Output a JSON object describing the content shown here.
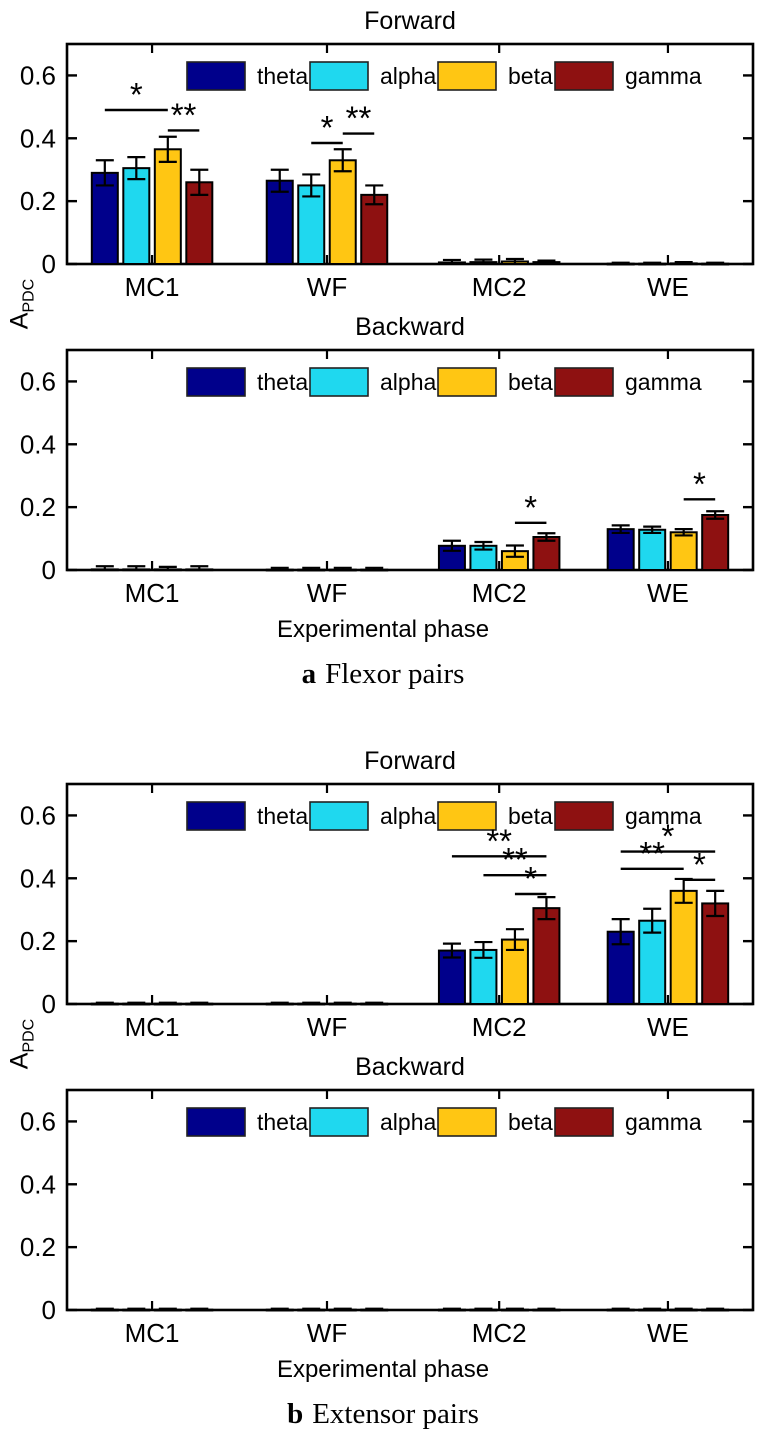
{
  "series_colors": {
    "theta": "#00008B",
    "alpha": "#1FD8EF",
    "beta": "#FFC613",
    "gamma": "#8E1111"
  },
  "panels": [
    {
      "ylabel": {
        "main": "A",
        "sub": "PDC"
      },
      "xlabel": "Experimental phase",
      "caption": {
        "letter": "a",
        "text": "Flexor pairs"
      },
      "chart_refs": [
        0,
        1
      ]
    },
    {
      "ylabel": {
        "main": "A",
        "sub": "PDC"
      },
      "xlabel": "Experimental phase",
      "caption": {
        "letter": "b",
        "text": "Extensor pairs"
      },
      "chart_refs": [
        2,
        3
      ]
    }
  ],
  "chart_data": [
    {
      "id": "a-forward",
      "type": "bar",
      "title": "Forward",
      "categories": [
        "MC1",
        "WF",
        "MC2",
        "WE"
      ],
      "ylabel": "A_PDC",
      "ylim": [
        0,
        0.7
      ],
      "yticks": [
        0,
        0.2,
        0.4,
        0.6
      ],
      "grid": false,
      "legend_position": "top-inside-row",
      "series": [
        {
          "name": "theta",
          "color": "#00008B",
          "values": [
            0.29,
            0.265,
            0.005,
            0.001
          ],
          "errors": [
            0.04,
            0.035,
            0.008,
            0.003
          ]
        },
        {
          "name": "alpha",
          "color": "#1FD8EF",
          "values": [
            0.305,
            0.25,
            0.006,
            0.001
          ],
          "errors": [
            0.035,
            0.035,
            0.008,
            0.003
          ]
        },
        {
          "name": "beta",
          "color": "#FFC613",
          "values": [
            0.365,
            0.33,
            0.008,
            0.002
          ],
          "errors": [
            0.04,
            0.035,
            0.008,
            0.004
          ]
        },
        {
          "name": "gamma",
          "color": "#8E1111",
          "values": [
            0.26,
            0.22,
            0.006,
            0.001
          ],
          "errors": [
            0.04,
            0.03,
            0.005,
            0.003
          ]
        }
      ],
      "significance": [
        {
          "category": "MC1",
          "from": "theta",
          "to": "beta",
          "label": "*",
          "y": 0.49
        },
        {
          "category": "MC1",
          "from": "beta",
          "to": "gamma",
          "label": "**",
          "y": 0.425
        },
        {
          "category": "WF",
          "from": "alpha",
          "to": "beta",
          "label": "*",
          "y": 0.385
        },
        {
          "category": "WF",
          "from": "beta",
          "to": "gamma",
          "label": "**",
          "y": 0.415
        }
      ]
    },
    {
      "id": "a-backward",
      "type": "bar",
      "title": "Backward",
      "categories": [
        "MC1",
        "WF",
        "MC2",
        "WE"
      ],
      "ylabel": "A_PDC",
      "ylim": [
        0,
        0.7
      ],
      "yticks": [
        0,
        0.2,
        0.4,
        0.6
      ],
      "grid": false,
      "legend_position": "top-inside-row",
      "series": [
        {
          "name": "theta",
          "color": "#00008B",
          "values": [
            0.002,
            0.001,
            0.077,
            0.13
          ],
          "errors": [
            0.01,
            0.006,
            0.016,
            0.012
          ]
        },
        {
          "name": "alpha",
          "color": "#1FD8EF",
          "values": [
            0.002,
            0.001,
            0.077,
            0.128
          ],
          "errors": [
            0.01,
            0.006,
            0.012,
            0.01
          ]
        },
        {
          "name": "beta",
          "color": "#FFC613",
          "values": [
            0.002,
            0.001,
            0.06,
            0.12
          ],
          "errors": [
            0.008,
            0.006,
            0.018,
            0.01
          ]
        },
        {
          "name": "gamma",
          "color": "#8E1111",
          "values": [
            0.002,
            0.001,
            0.105,
            0.175
          ],
          "errors": [
            0.01,
            0.006,
            0.012,
            0.012
          ]
        }
      ],
      "significance": [
        {
          "category": "MC2",
          "from": "beta",
          "to": "gamma",
          "label": "*",
          "y": 0.15
        },
        {
          "category": "WE",
          "from": "beta",
          "to": "gamma",
          "label": "*",
          "y": 0.225
        }
      ]
    },
    {
      "id": "b-forward",
      "type": "bar",
      "title": "Forward",
      "categories": [
        "MC1",
        "WF",
        "MC2",
        "WE"
      ],
      "ylabel": "A_PDC",
      "ylim": [
        0,
        0.7
      ],
      "yticks": [
        0,
        0.2,
        0.4,
        0.6
      ],
      "grid": false,
      "legend_position": "top-inside-row",
      "series": [
        {
          "name": "theta",
          "color": "#00008B",
          "values": [
            0.001,
            0.001,
            0.17,
            0.23
          ],
          "errors": [
            0.003,
            0.003,
            0.022,
            0.04
          ]
        },
        {
          "name": "alpha",
          "color": "#1FD8EF",
          "values": [
            0.001,
            0.001,
            0.172,
            0.265
          ],
          "errors": [
            0.003,
            0.003,
            0.025,
            0.038
          ]
        },
        {
          "name": "beta",
          "color": "#FFC613",
          "values": [
            0.001,
            0.001,
            0.205,
            0.36
          ],
          "errors": [
            0.003,
            0.003,
            0.033,
            0.038
          ]
        },
        {
          "name": "gamma",
          "color": "#8E1111",
          "values": [
            0.001,
            0.001,
            0.305,
            0.32
          ],
          "errors": [
            0.003,
            0.003,
            0.035,
            0.04
          ]
        }
      ],
      "significance": [
        {
          "category": "MC2",
          "from": "theta",
          "to": "gamma",
          "label": "**",
          "y": 0.47
        },
        {
          "category": "MC2",
          "from": "alpha",
          "to": "gamma",
          "label": "**",
          "y": 0.41
        },
        {
          "category": "MC2",
          "from": "beta",
          "to": "gamma",
          "label": "*",
          "y": 0.35
        },
        {
          "category": "WE",
          "from": "theta",
          "to": "gamma",
          "label": "*",
          "y": 0.485
        },
        {
          "category": "WE",
          "from": "theta",
          "to": "beta",
          "label": "**",
          "y": 0.43
        },
        {
          "category": "WE",
          "from": "beta",
          "to": "gamma",
          "label": "*",
          "y": 0.395
        }
      ]
    },
    {
      "id": "b-backward",
      "type": "bar",
      "title": "Backward",
      "categories": [
        "MC1",
        "WF",
        "MC2",
        "WE"
      ],
      "ylabel": "A_PDC",
      "ylim": [
        0,
        0.7
      ],
      "yticks": [
        0,
        0.2,
        0.4,
        0.6
      ],
      "grid": false,
      "legend_position": "top-inside-row",
      "series": [
        {
          "name": "theta",
          "color": "#00008B",
          "values": [
            0.001,
            0.001,
            0.001,
            0.001
          ],
          "errors": [
            0.003,
            0.003,
            0.003,
            0.003
          ]
        },
        {
          "name": "alpha",
          "color": "#1FD8EF",
          "values": [
            0.001,
            0.001,
            0.001,
            0.001
          ],
          "errors": [
            0.003,
            0.003,
            0.003,
            0.003
          ]
        },
        {
          "name": "beta",
          "color": "#FFC613",
          "values": [
            0.001,
            0.001,
            0.001,
            0.001
          ],
          "errors": [
            0.003,
            0.003,
            0.003,
            0.003
          ]
        },
        {
          "name": "gamma",
          "color": "#8E1111",
          "values": [
            0.001,
            0.001,
            0.001,
            0.001
          ],
          "errors": [
            0.003,
            0.003,
            0.003,
            0.003
          ]
        }
      ],
      "significance": []
    }
  ]
}
